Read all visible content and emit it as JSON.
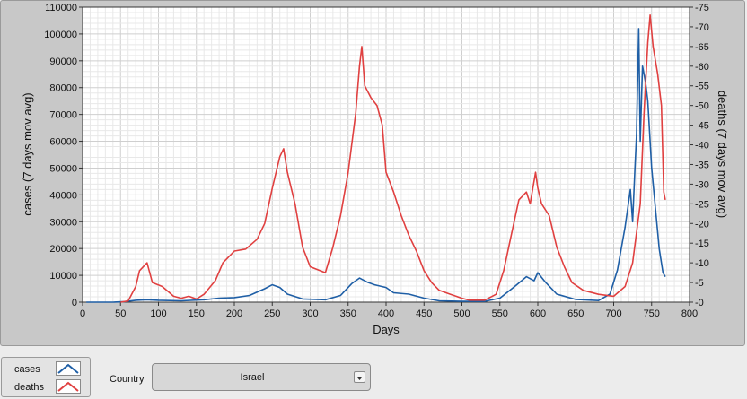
{
  "chart_data": {
    "type": "line",
    "xlabel": "Days",
    "ylabel_left": "cases  (7 days mov avg)",
    "ylabel_right": "deaths  (7 days mov avg)",
    "xlim": [
      0,
      800
    ],
    "ylim_left": [
      0,
      110000
    ],
    "ylim_right": [
      0,
      75
    ],
    "x_ticks": [
      0,
      50,
      100,
      150,
      200,
      250,
      300,
      350,
      400,
      450,
      500,
      550,
      600,
      650,
      700,
      750,
      800
    ],
    "y_left_ticks": [
      0,
      10000,
      20000,
      30000,
      40000,
      50000,
      60000,
      70000,
      80000,
      90000,
      100000,
      110000
    ],
    "y_right_ticks": [
      0,
      5,
      10,
      15,
      20,
      25,
      30,
      35,
      40,
      45,
      50,
      55,
      60,
      65,
      70,
      75
    ],
    "grid": true,
    "series": [
      {
        "name": "cases",
        "axis": "left",
        "color": "#1f5fa6",
        "points": [
          [
            5,
            0
          ],
          [
            40,
            0
          ],
          [
            55,
            200
          ],
          [
            70,
            700
          ],
          [
            85,
            900
          ],
          [
            100,
            700
          ],
          [
            130,
            500
          ],
          [
            160,
            900
          ],
          [
            180,
            1500
          ],
          [
            200,
            1700
          ],
          [
            220,
            2500
          ],
          [
            240,
            5000
          ],
          [
            250,
            6500
          ],
          [
            260,
            5500
          ],
          [
            270,
            3000
          ],
          [
            290,
            1200
          ],
          [
            320,
            900
          ],
          [
            340,
            2500
          ],
          [
            355,
            7000
          ],
          [
            365,
            9000
          ],
          [
            375,
            7500
          ],
          [
            385,
            6500
          ],
          [
            400,
            5500
          ],
          [
            410,
            3500
          ],
          [
            430,
            3000
          ],
          [
            450,
            1500
          ],
          [
            470,
            500
          ],
          [
            500,
            300
          ],
          [
            530,
            300
          ],
          [
            550,
            1500
          ],
          [
            570,
            6000
          ],
          [
            585,
            9500
          ],
          [
            595,
            8000
          ],
          [
            600,
            11000
          ],
          [
            610,
            7500
          ],
          [
            625,
            3000
          ],
          [
            650,
            1000
          ],
          [
            680,
            600
          ],
          [
            695,
            3000
          ],
          [
            705,
            12000
          ],
          [
            715,
            28000
          ],
          [
            722,
            42000
          ],
          [
            725,
            30000
          ],
          [
            728,
            50000
          ],
          [
            730,
            62000
          ],
          [
            733,
            102000
          ],
          [
            735,
            60000
          ],
          [
            738,
            88000
          ],
          [
            742,
            82000
          ],
          [
            745,
            75000
          ],
          [
            750,
            50000
          ],
          [
            755,
            35000
          ],
          [
            760,
            20000
          ],
          [
            765,
            11000
          ],
          [
            768,
            9500
          ]
        ]
      },
      {
        "name": "deaths",
        "axis": "right",
        "color": "#e04040",
        "points": [
          [
            50,
            0
          ],
          [
            60,
            0.3
          ],
          [
            70,
            4
          ],
          [
            75,
            8
          ],
          [
            85,
            10
          ],
          [
            92,
            5
          ],
          [
            105,
            4
          ],
          [
            120,
            1.5
          ],
          [
            130,
            1
          ],
          [
            140,
            1.5
          ],
          [
            150,
            0.8
          ],
          [
            160,
            2
          ],
          [
            175,
            5.5
          ],
          [
            185,
            10
          ],
          [
            200,
            13
          ],
          [
            215,
            13.5
          ],
          [
            230,
            16
          ],
          [
            240,
            20
          ],
          [
            250,
            29
          ],
          [
            260,
            37
          ],
          [
            265,
            39
          ],
          [
            270,
            33
          ],
          [
            280,
            25
          ],
          [
            290,
            14
          ],
          [
            300,
            9
          ],
          [
            320,
            7.5
          ],
          [
            330,
            14
          ],
          [
            340,
            22
          ],
          [
            350,
            33
          ],
          [
            360,
            48
          ],
          [
            365,
            60
          ],
          [
            368,
            65
          ],
          [
            372,
            55
          ],
          [
            380,
            52
          ],
          [
            388,
            50
          ],
          [
            395,
            45
          ],
          [
            400,
            33
          ],
          [
            410,
            28
          ],
          [
            420,
            22
          ],
          [
            430,
            17
          ],
          [
            440,
            13
          ],
          [
            450,
            8
          ],
          [
            460,
            5
          ],
          [
            470,
            3
          ],
          [
            485,
            2
          ],
          [
            500,
            1
          ],
          [
            510,
            0.5
          ],
          [
            530,
            0.5
          ],
          [
            545,
            2
          ],
          [
            555,
            8
          ],
          [
            565,
            17
          ],
          [
            575,
            26
          ],
          [
            585,
            28
          ],
          [
            590,
            25
          ],
          [
            597,
            33
          ],
          [
            600,
            29
          ],
          [
            605,
            25
          ],
          [
            615,
            22
          ],
          [
            625,
            14
          ],
          [
            635,
            9
          ],
          [
            645,
            5
          ],
          [
            660,
            3
          ],
          [
            680,
            2
          ],
          [
            700,
            1.5
          ],
          [
            715,
            4
          ],
          [
            725,
            10
          ],
          [
            735,
            25
          ],
          [
            740,
            48
          ],
          [
            745,
            66
          ],
          [
            748,
            73
          ],
          [
            752,
            65
          ],
          [
            758,
            58
          ],
          [
            763,
            50
          ],
          [
            766,
            28
          ],
          [
            768,
            26
          ]
        ]
      }
    ]
  },
  "legend": {
    "cases_label": "cases",
    "deaths_label": "deaths"
  },
  "country": {
    "label": "Country",
    "value": "Israel"
  }
}
